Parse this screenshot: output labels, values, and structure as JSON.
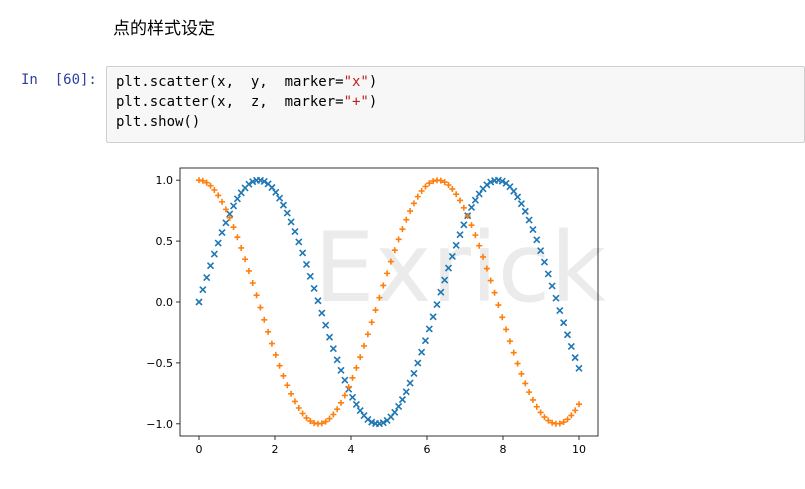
{
  "markdown_cell": {
    "heading": "点的样式设定"
  },
  "code_cell": {
    "prompt": "In  [60]:",
    "lines": [
      {
        "pre": "plt.scatter(x,  y,  marker=",
        "str": "\"x\"",
        "post": ")"
      },
      {
        "pre": "plt.scatter(x,  z,  marker=",
        "str": "\"+\"",
        "post": ")"
      },
      {
        "pre": "plt.show()",
        "str": "",
        "post": ""
      }
    ]
  },
  "watermark": {
    "text": "Exrick"
  },
  "chart_data": {
    "type": "scatter",
    "title": "",
    "xlabel": "",
    "ylabel": "",
    "xlim": [
      -0.5,
      10.5
    ],
    "ylim": [
      -1.1,
      1.1
    ],
    "xticks": [
      0,
      2,
      4,
      6,
      8,
      10
    ],
    "xtick_labels": [
      "0",
      "2",
      "4",
      "6",
      "8",
      "10"
    ],
    "yticks": [
      1.0,
      0.5,
      0.0,
      -0.5,
      -1.0
    ],
    "ytick_labels": [
      "1.0",
      "0.5",
      "0.0",
      "−0.5",
      "−1.0"
    ],
    "grid": false,
    "x_range": [
      0,
      10
    ],
    "n_points": 100,
    "series": [
      {
        "function": "sin(x)",
        "marker": "x",
        "color": "#1f77b4"
      },
      {
        "function": "cos(x)",
        "marker": "+",
        "color": "#ff7f0e"
      }
    ]
  }
}
